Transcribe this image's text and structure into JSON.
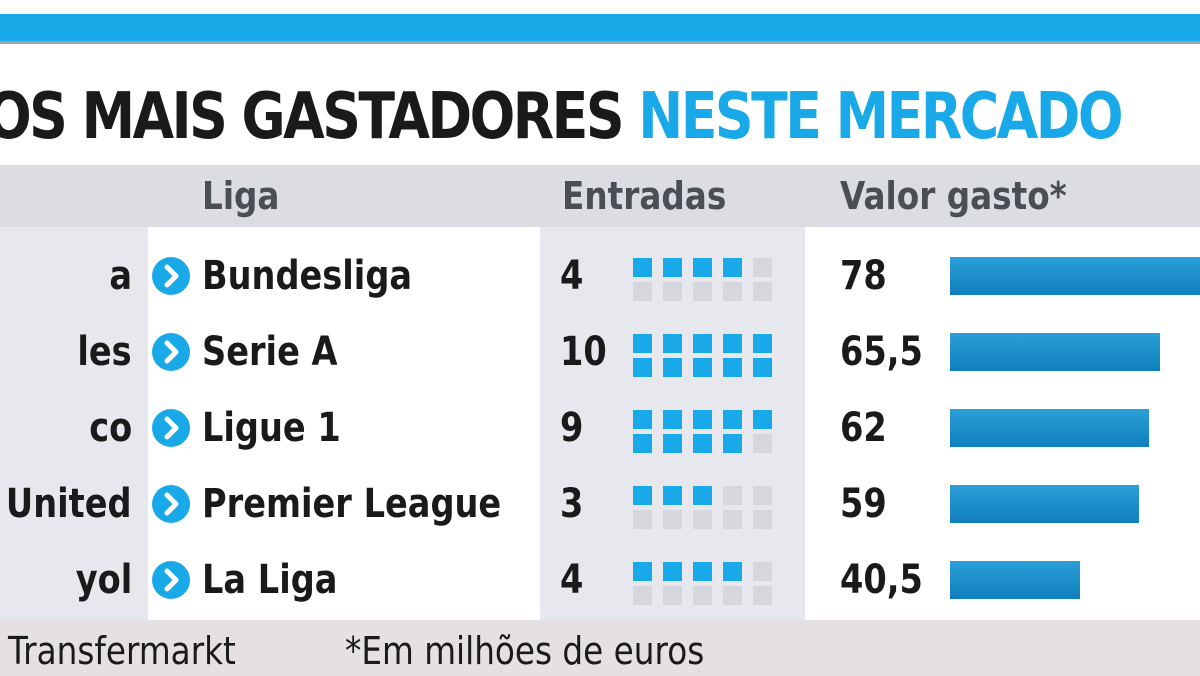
{
  "title": {
    "part1": "OS MAIS GASTADORES",
    "part2": "NESTE MERCADO"
  },
  "colors": {
    "accent": "#1aa9e8",
    "bar": "#1189c8",
    "panel": "#e7e8ed"
  },
  "headers": {
    "liga": "Liga",
    "entradas": "Entradas",
    "valor": "Valor gasto*"
  },
  "chart_data": {
    "type": "bar",
    "title": "OS MAIS GASTADORES NESTE MERCADO",
    "columns": [
      "Liga",
      "Entradas",
      "Valor gasto*"
    ],
    "rows": [
      {
        "team": "a",
        "liga": "Bundesliga",
        "entradas": 4,
        "entradas_label": "4",
        "valor": 78,
        "valor_label": "78"
      },
      {
        "team": "les",
        "liga": "Serie A",
        "entradas": 10,
        "entradas_label": "10",
        "valor": 65.5,
        "valor_label": "65,5"
      },
      {
        "team": "co",
        "liga": "Ligue 1",
        "entradas": 9,
        "entradas_label": "9",
        "valor": 62,
        "valor_label": "62"
      },
      {
        "team": "United",
        "liga": "Premier League",
        "entradas": 3,
        "entradas_label": "3",
        "valor": 59,
        "valor_label": "59"
      },
      {
        "team": "yol",
        "liga": "La Liga",
        "entradas": 4,
        "entradas_label": "4",
        "valor": 40.5,
        "valor_label": "40,5"
      }
    ],
    "entradas_max": 10,
    "valor_max": 78
  },
  "footer": {
    "source": "Transfermarkt",
    "note": "*Em milhões de euros"
  }
}
